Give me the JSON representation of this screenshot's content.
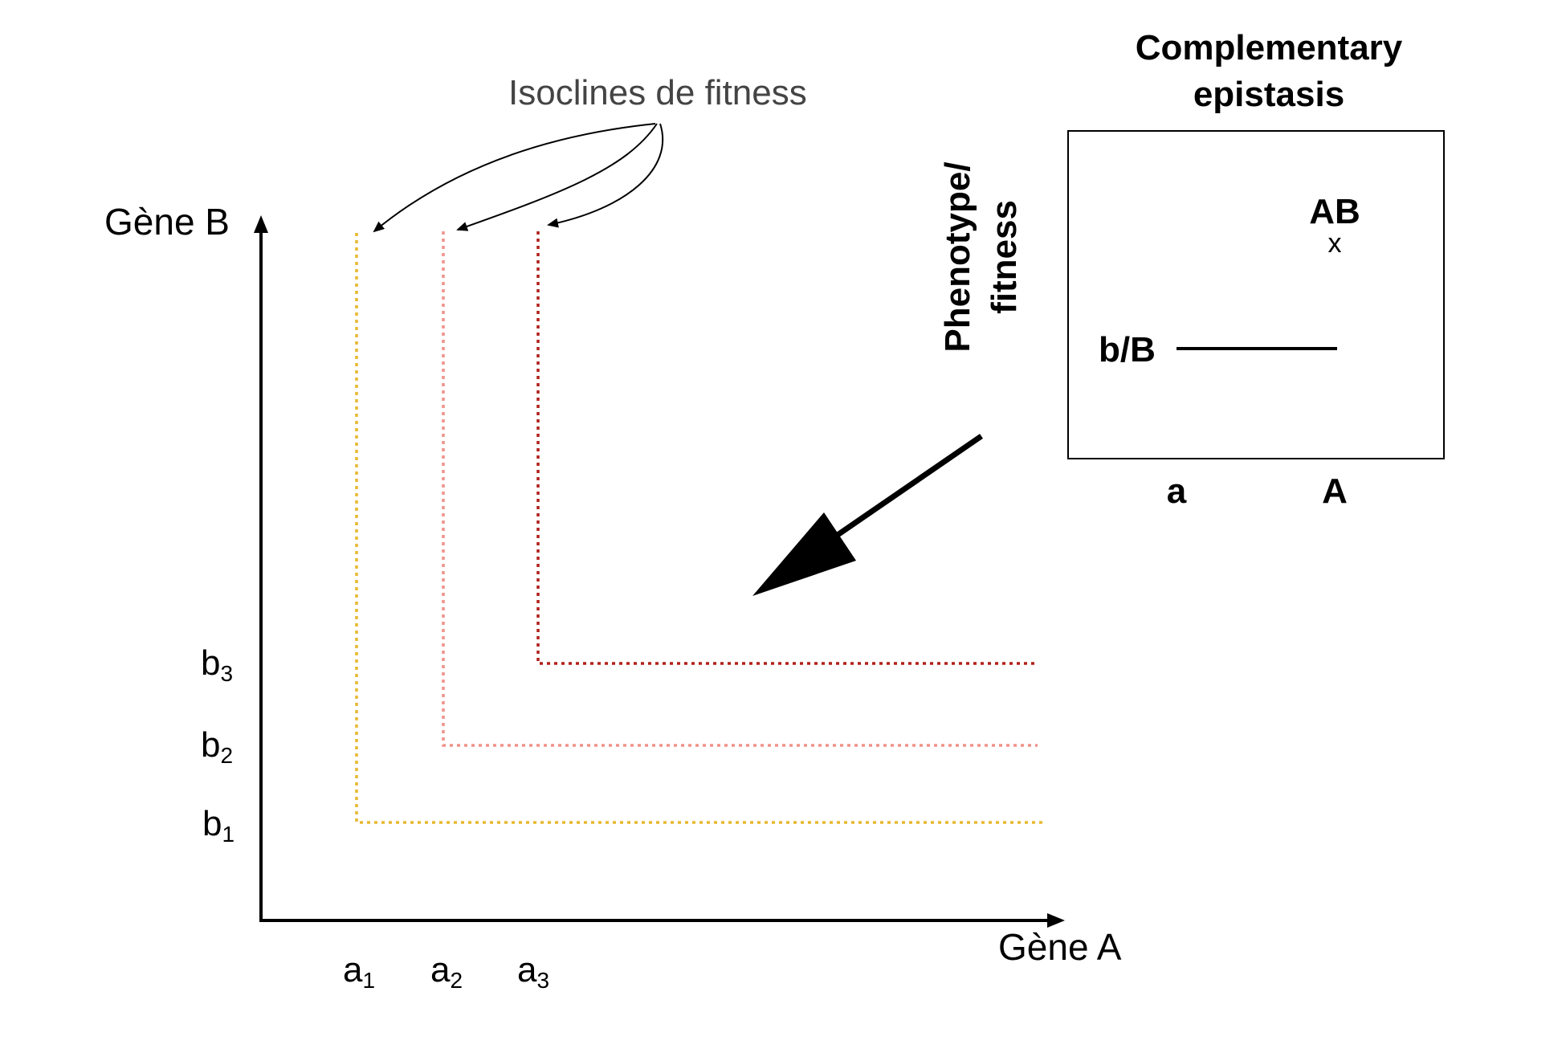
{
  "axes": {
    "x_label": "Gène A",
    "y_label": "Gène B",
    "x_ticks": [
      {
        "base": "a",
        "sub": "1"
      },
      {
        "base": "a",
        "sub": "2"
      },
      {
        "base": "a",
        "sub": "3"
      }
    ],
    "y_ticks": [
      {
        "base": "b",
        "sub": "1"
      },
      {
        "base": "b",
        "sub": "2"
      },
      {
        "base": "b",
        "sub": "3"
      }
    ]
  },
  "isoclines": {
    "annotation": "Isoclines de fitness",
    "items": [
      {
        "index": 1,
        "color": "#E8B830"
      },
      {
        "index": 2,
        "color": "#F0928A"
      },
      {
        "index": 3,
        "color": "#B0201A"
      }
    ]
  },
  "rotated_label": {
    "line1": "Phenotype/",
    "line2": "fitness"
  },
  "inset": {
    "title_line1": "Complementary",
    "title_line2": "epistasis",
    "line_label": "b/B",
    "point_label": "AB",
    "point_marker": "x",
    "x_labels": [
      "a",
      "A"
    ]
  },
  "colors": {
    "axis": "#000000",
    "annotation_text": "#444444"
  }
}
